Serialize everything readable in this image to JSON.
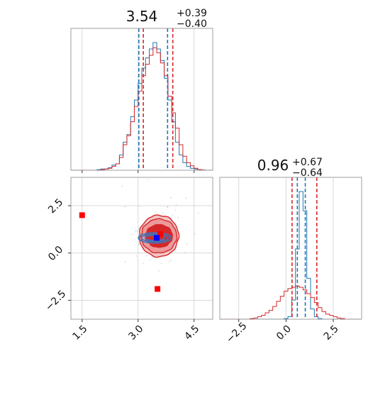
{
  "chart_data": [
    {
      "type": "histogram",
      "panel": "top-left",
      "title": "3.54",
      "title_sup": "+0.39",
      "title_sub": "−0.40",
      "xlim": [
        1.2,
        5.0
      ],
      "bins_x": [
        1.2,
        1.3,
        1.4,
        1.5,
        1.6,
        1.7,
        1.8,
        1.9,
        2.0,
        2.1,
        2.2,
        2.3,
        2.4,
        2.5,
        2.6,
        2.7,
        2.8,
        2.9,
        3.0,
        3.1,
        3.2,
        3.3,
        3.4,
        3.5,
        3.6,
        3.7,
        3.8,
        3.9,
        4.0,
        4.1,
        4.2,
        4.3,
        4.4,
        4.5,
        4.6,
        4.7,
        4.8,
        4.9,
        5.0
      ],
      "series": [
        {
          "color": "#1f77b4",
          "counts": [
            0,
            0,
            0,
            0,
            0,
            0,
            0,
            0.005,
            0.01,
            0.01,
            0.02,
            0.04,
            0.05,
            0.12,
            0.22,
            0.28,
            0.42,
            0.55,
            0.68,
            0.8,
            0.88,
            0.95,
            1.0,
            0.95,
            0.86,
            0.72,
            0.55,
            0.38,
            0.22,
            0.12,
            0.06,
            0.03,
            0.015,
            0.01,
            0.005,
            0,
            0,
            0
          ]
        },
        {
          "color": "#d62728",
          "counts": [
            0,
            0,
            0,
            0,
            0,
            0,
            0,
            0,
            0.005,
            0.01,
            0.015,
            0.03,
            0.05,
            0.1,
            0.2,
            0.27,
            0.38,
            0.5,
            0.62,
            0.74,
            0.83,
            0.9,
            0.96,
            0.92,
            0.84,
            0.74,
            0.58,
            0.45,
            0.33,
            0.2,
            0.11,
            0.06,
            0.035,
            0.015,
            0.005,
            0.002,
            0,
            0
          ]
        }
      ],
      "quantile_lines": [
        {
          "color": "#1f77b4",
          "values": [
            3.02,
            3.79
          ]
        },
        {
          "color": "#d62728",
          "values": [
            3.14,
            3.93
          ]
        }
      ],
      "xticks": [
        1.5,
        3.0,
        4.5
      ]
    },
    {
      "type": "contour",
      "panel": "bottom-left",
      "xlim": [
        1.2,
        5.0
      ],
      "ylim": [
        -3.5,
        4.0
      ],
      "xticks": [
        1.5,
        3.0,
        4.5
      ],
      "xtick_labels": [
        "1.5",
        "3.0",
        "4.5"
      ],
      "yticks": [
        -2.5,
        0.0,
        2.5
      ],
      "ytick_labels": [
        "−2.5",
        "0.0",
        "2.5"
      ],
      "red_contour_levels": [
        {
          "cx": 3.56,
          "cy": 0.9,
          "rx": 1.05,
          "ry": 2.2,
          "fill": "#f3c6c6"
        },
        {
          "cx": 3.56,
          "cy": 0.9,
          "rx": 0.95,
          "ry": 1.8,
          "fill": "#ec9a9b"
        },
        {
          "cx": 3.56,
          "cy": 0.9,
          "rx": 0.72,
          "ry": 1.2,
          "fill": "#d62728"
        }
      ],
      "blue_contour_levels": [
        {
          "cx": 3.45,
          "cy": 0.8,
          "rx": 0.88,
          "ry": 0.55
        },
        {
          "cx": 3.45,
          "cy": 0.8,
          "rx": 0.72,
          "ry": 0.4
        },
        {
          "cx": 3.45,
          "cy": 0.8,
          "rx": 0.52,
          "ry": 0.28
        }
      ],
      "markers": [
        {
          "x": 1.5,
          "y": 2.0,
          "color": "#ff0000"
        },
        {
          "x": 3.52,
          "y": -1.9,
          "color": "#ff0000"
        },
        {
          "x": 3.6,
          "y": 1.0,
          "color": "#ff0000"
        },
        {
          "x": 3.5,
          "y": 0.8,
          "color": "#0000ff"
        }
      ]
    },
    {
      "type": "histogram",
      "panel": "bottom-right",
      "title": "0.96",
      "title_sup": "+0.67",
      "title_sub": "−0.64",
      "xlim": [
        -3.5,
        4.0
      ],
      "bins_x": [
        -3.5,
        -3.3,
        -3.1,
        -2.9,
        -2.7,
        -2.5,
        -2.3,
        -2.1,
        -1.9,
        -1.7,
        -1.5,
        -1.3,
        -1.1,
        -0.9,
        -0.7,
        -0.5,
        -0.3,
        -0.1,
        0.1,
        0.3,
        0.5,
        0.7,
        0.9,
        1.1,
        1.3,
        1.5,
        1.7,
        1.9,
        2.1,
        2.3,
        2.5,
        2.7,
        2.9,
        3.1,
        3.3,
        3.5,
        3.7,
        3.9
      ],
      "series": [
        {
          "color": "#1f77b4",
          "counts": [
            0,
            0,
            0,
            0,
            0,
            0,
            0,
            0,
            0,
            0,
            0,
            0,
            0,
            0,
            0,
            0,
            0,
            0.005,
            0.02,
            0.15,
            0.55,
            1.0,
            0.85,
            0.32,
            0.08,
            0.02,
            0.005,
            0,
            0,
            0,
            0,
            0,
            0,
            0,
            0,
            0,
            0
          ]
        },
        {
          "color": "#d62728",
          "counts": [
            0,
            0,
            0,
            0,
            0,
            0,
            0,
            0,
            0.005,
            0.01,
            0.02,
            0.03,
            0.05,
            0.07,
            0.1,
            0.14,
            0.18,
            0.22,
            0.24,
            0.25,
            0.26,
            0.25,
            0.23,
            0.2,
            0.17,
            0.13,
            0.09,
            0.06,
            0.04,
            0.03,
            0.02,
            0.01,
            0.005,
            0,
            0,
            0,
            0
          ]
        }
      ],
      "quantile_lines": [
        {
          "color": "#d62728",
          "values": [
            0.32,
            1.63
          ]
        },
        {
          "color": "#1f77b4",
          "values": [
            0.6,
            1.02
          ]
        }
      ],
      "xticks": [
        -2.5,
        0.0,
        2.5
      ],
      "xtick_labels": [
        "−2.5",
        "0.0",
        "2.5"
      ]
    }
  ]
}
